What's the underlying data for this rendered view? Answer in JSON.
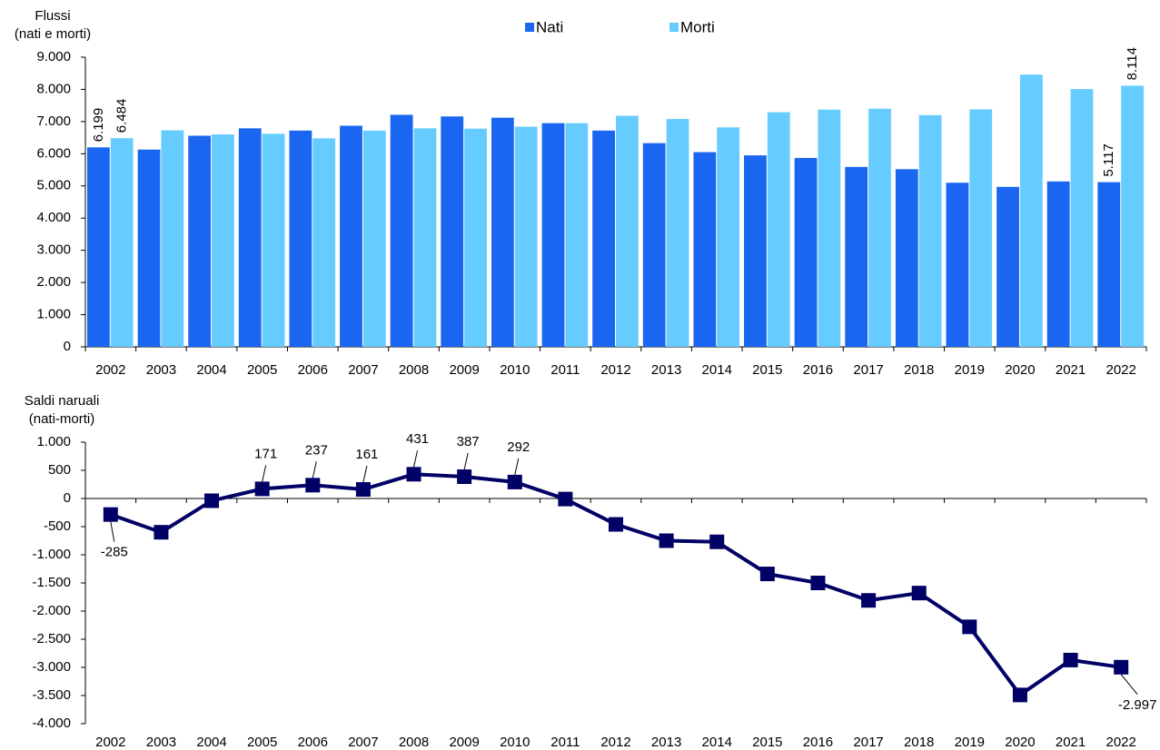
{
  "chart_data": [
    {
      "type": "bar",
      "y_label": [
        "Flussi",
        "(nati e morti)"
      ],
      "categories": [
        "2002",
        "2003",
        "2004",
        "2005",
        "2006",
        "2007",
        "2008",
        "2009",
        "2010",
        "2011",
        "2012",
        "2013",
        "2014",
        "2015",
        "2016",
        "2017",
        "2018",
        "2019",
        "2020",
        "2021",
        "2022"
      ],
      "series": [
        {
          "name": "Nati",
          "color": "#1a66f0",
          "values": [
            6199,
            6130,
            6560,
            6790,
            6720,
            6870,
            7210,
            7160,
            7120,
            6950,
            6720,
            6330,
            6050,
            5950,
            5870,
            5590,
            5520,
            5100,
            4970,
            5140,
            5117
          ],
          "value_labels": [
            "6.199",
            null,
            null,
            null,
            null,
            null,
            null,
            null,
            null,
            null,
            null,
            null,
            null,
            null,
            null,
            null,
            null,
            null,
            null,
            null,
            "5.117"
          ]
        },
        {
          "name": "Morti",
          "color": "#66ccff",
          "values": [
            6484,
            6730,
            6600,
            6620,
            6480,
            6720,
            6790,
            6780,
            6840,
            6950,
            7180,
            7080,
            6820,
            7290,
            7370,
            7400,
            7200,
            7380,
            8460,
            8010,
            8114
          ],
          "value_labels": [
            "6.484",
            null,
            null,
            null,
            null,
            null,
            null,
            null,
            null,
            null,
            null,
            null,
            null,
            null,
            null,
            null,
            null,
            null,
            null,
            null,
            "8.114"
          ]
        }
      ],
      "ylim": [
        0,
        9000
      ],
      "yticks": [
        0,
        {
          "value": 1000,
          "label": "1.000"
        },
        {
          "value": 2000,
          "label": "2.000"
        },
        {
          "value": 3000,
          "label": "3.000"
        },
        {
          "value": 4000,
          "label": "4.000"
        },
        {
          "value": 5000,
          "label": "5.000"
        },
        {
          "value": 6000,
          "label": "6.000"
        },
        {
          "value": 7000,
          "label": "7.000"
        },
        {
          "value": 8000,
          "label": "8.000"
        },
        {
          "value": 9000,
          "label": "9.000"
        }
      ],
      "legend": "top"
    },
    {
      "type": "line",
      "y_label": [
        "Saldi naruali",
        "(nati-morti)"
      ],
      "categories": [
        "2002",
        "2003",
        "2004",
        "2005",
        "2006",
        "2007",
        "2008",
        "2009",
        "2010",
        "2011",
        "2012",
        "2013",
        "2014",
        "2015",
        "2016",
        "2017",
        "2018",
        "2019",
        "2020",
        "2021",
        "2022"
      ],
      "series": [
        {
          "name": null,
          "color": "#000066",
          "values": [
            -285,
            -600,
            -40,
            171,
            237,
            161,
            431,
            387,
            292,
            -10,
            -460,
            -750,
            -770,
            -1340,
            -1500,
            -1810,
            -1680,
            -2280,
            -3490,
            -2870,
            -2997
          ],
          "value_labels": [
            "-285",
            null,
            null,
            "171",
            "237",
            "161",
            "431",
            "387",
            "292",
            null,
            null,
            null,
            null,
            null,
            null,
            null,
            null,
            null,
            null,
            null,
            "-2.997"
          ]
        }
      ],
      "ylim": [
        -4000,
        1000
      ],
      "yticks": [
        {
          "value": -4000,
          "label": "-4.000"
        },
        {
          "value": -3500,
          "label": "-3.500"
        },
        {
          "value": -3000,
          "label": "-3.000"
        },
        {
          "value": -2500,
          "label": "-2.500"
        },
        {
          "value": -2000,
          "label": "-2.000"
        },
        {
          "value": -1500,
          "label": "-1.500"
        },
        {
          "value": -1000,
          "label": "-1.000"
        },
        -500,
        0,
        500,
        {
          "value": 1000,
          "label": "1.000"
        }
      ]
    }
  ]
}
